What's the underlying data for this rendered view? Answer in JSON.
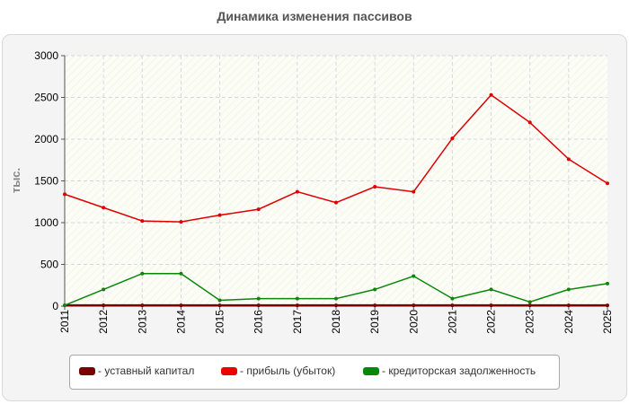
{
  "chart_data": {
    "type": "line",
    "title": "Динамика изменения пассивов",
    "ylabel": "тыс.",
    "xlabel": "",
    "categories": [
      "2011",
      "2012",
      "2013",
      "2014",
      "2015",
      "2016",
      "2017",
      "2018",
      "2019",
      "2020",
      "2021",
      "2022",
      "2023",
      "2024",
      "2025"
    ],
    "ylim": [
      0,
      3000
    ],
    "yticks": [
      0,
      500,
      1000,
      1500,
      2000,
      2500,
      3000
    ],
    "grid": true,
    "legend_position": "bottom",
    "series": [
      {
        "name": "- уставный капитал",
        "color": "#7a0000",
        "values": [
          10,
          10,
          10,
          10,
          10,
          10,
          10,
          10,
          10,
          10,
          10,
          10,
          10,
          10,
          10
        ]
      },
      {
        "name": "- прибыль (убыток)",
        "color": "#dd0000",
        "values": [
          1340,
          1180,
          1020,
          1010,
          1090,
          1160,
          1370,
          1240,
          1430,
          1370,
          2010,
          2530,
          2200,
          1760,
          1470
        ]
      },
      {
        "name": "- кредиторская задолженность",
        "color": "#0a870a",
        "values": [
          10,
          200,
          390,
          390,
          70,
          90,
          90,
          90,
          200,
          360,
          90,
          200,
          50,
          200,
          270
        ]
      }
    ]
  }
}
